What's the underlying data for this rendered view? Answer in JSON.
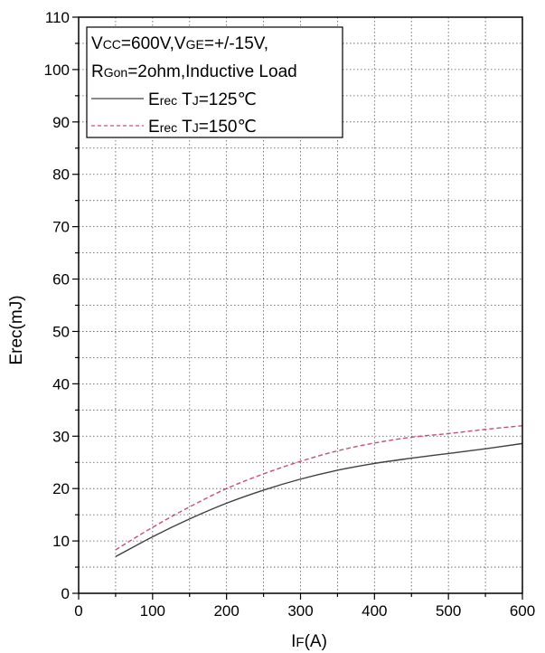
{
  "chart_data": {
    "type": "line",
    "xlabel": {
      "main": "I",
      "sub": "F",
      "tail": "(A)"
    },
    "ylabel": "Erec(mJ)",
    "xlim": [
      0,
      600
    ],
    "ylim": [
      0,
      110
    ],
    "x_ticks": [
      "0",
      "100",
      "200",
      "300",
      "400",
      "500",
      "600"
    ],
    "y_ticks": [
      "0",
      "10",
      "20",
      "30",
      "40",
      "50",
      "60",
      "70",
      "80",
      "90",
      "100",
      "110"
    ],
    "grid": true,
    "legend_placement": "top-left",
    "legend": {
      "line1": {
        "a": "V",
        "a_sub": "CC",
        "b": "=600V,V",
        "b_sub": "GE",
        "c": "=+/-15V,"
      },
      "line2": {
        "a": "R",
        "a_sub": "Gon",
        "b": "=2ohm,Inductive Load"
      }
    },
    "series": [
      {
        "name": "Erec TJ=125℃",
        "label": {
          "a": "E",
          "a_sub": "rec",
          "b": " T",
          "b_sub": "J",
          "c": "=125℃"
        },
        "color": "#404040",
        "style": "solid",
        "x": [
          50,
          100,
          150,
          200,
          250,
          300,
          350,
          400,
          450,
          500,
          550,
          600
        ],
        "y": [
          7.0,
          10.8,
          14.2,
          17.2,
          19.7,
          21.8,
          23.5,
          24.8,
          25.8,
          26.7,
          27.6,
          28.6
        ]
      },
      {
        "name": "Erec TJ=150℃",
        "label": {
          "a": "E",
          "a_sub": "rec",
          "b": " T",
          "b_sub": "J",
          "c": "=150℃"
        },
        "color": "#c8506e",
        "style": "dashed",
        "x": [
          50,
          100,
          150,
          200,
          250,
          300,
          350,
          400,
          450,
          500,
          550,
          600
        ],
        "y": [
          8.3,
          12.6,
          16.5,
          20.0,
          22.8,
          25.2,
          27.2,
          28.7,
          29.8,
          30.5,
          31.3,
          32.0
        ]
      }
    ]
  }
}
